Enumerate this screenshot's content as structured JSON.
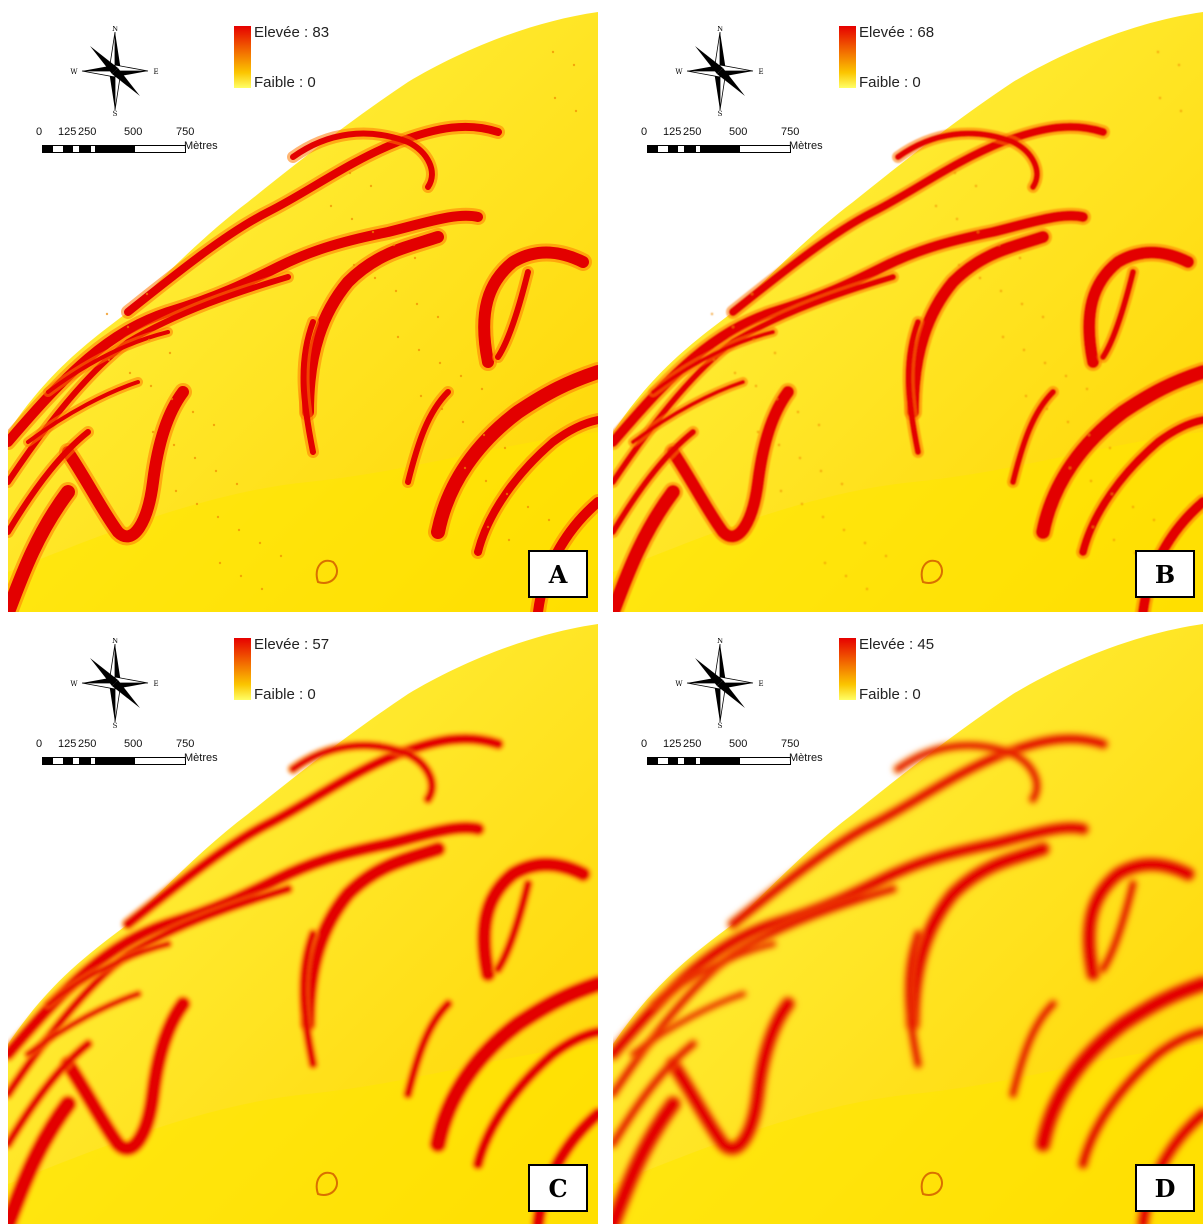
{
  "panels": [
    {
      "id": "A",
      "label": "A",
      "legend": {
        "high": "Elevée : 83",
        "low": "Faible : 0"
      }
    },
    {
      "id": "B",
      "label": "B",
      "legend": {
        "high": "Elevée : 68",
        "low": "Faible : 0"
      }
    },
    {
      "id": "C",
      "label": "C",
      "legend": {
        "high": "Elevée : 57",
        "low": "Faible : 0"
      }
    },
    {
      "id": "D",
      "label": "D",
      "legend": {
        "high": "Elevée : 45",
        "low": "Faible : 0"
      }
    }
  ],
  "compass": {
    "n": "N",
    "s": "S",
    "e": "E",
    "w": "W"
  },
  "scalebar": {
    "ticks": [
      "0",
      "125",
      "250",
      "500",
      "750"
    ],
    "unit": "Mètres"
  },
  "colors": {
    "high": "#e60000",
    "mid": "#f57a00",
    "low": "#ffee00",
    "background": "#ffffff"
  }
}
